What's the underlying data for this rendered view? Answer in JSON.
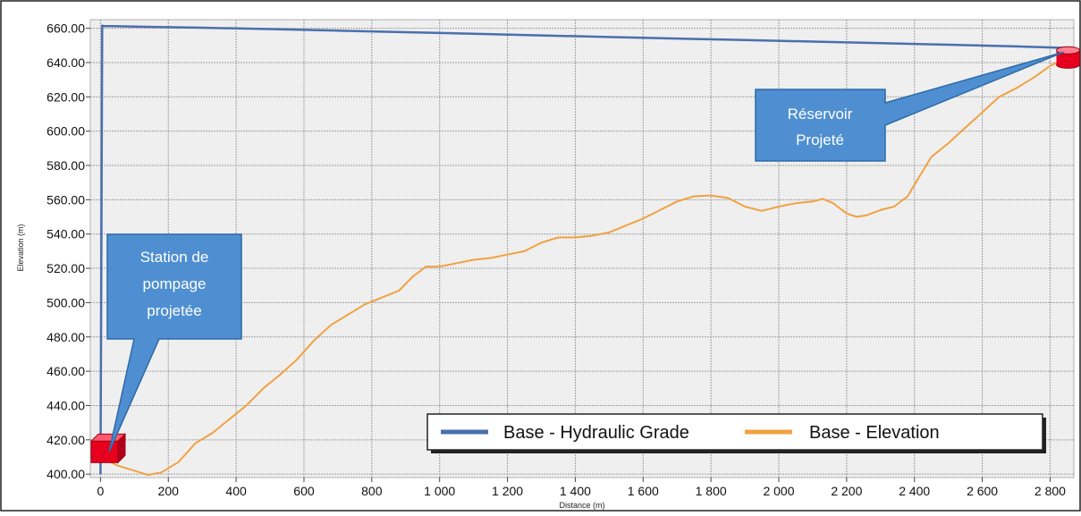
{
  "chart_data": {
    "type": "line",
    "xlabel": "Distance (m)",
    "ylabel": "Elevation (m)",
    "xlim": [
      -30,
      2870
    ],
    "ylim": [
      398,
      665
    ],
    "y_ticks": [
      400,
      420,
      440,
      460,
      480,
      500,
      520,
      540,
      560,
      580,
      600,
      620,
      640,
      660
    ],
    "y_tick_labels": [
      "400.00",
      "420.00",
      "440.00",
      "460.00",
      "480.00",
      "500.00",
      "520.00",
      "540.00",
      "560.00",
      "580.00",
      "600.00",
      "620.00",
      "640.00",
      "660.00"
    ],
    "x_ticks": [
      0,
      200,
      400,
      600,
      800,
      1000,
      1200,
      1400,
      1600,
      1800,
      2000,
      2200,
      2400,
      2600,
      2800
    ],
    "x_tick_labels": [
      "0",
      "200",
      "400",
      "600",
      "800",
      "1 000",
      "1 200",
      "1 400",
      "1 600",
      "1 800",
      "2 000",
      "2 200",
      "2 400",
      "2 600",
      "2 800"
    ],
    "grid": true,
    "legend_position": "bottom-right",
    "series": [
      {
        "name": "Base - Hydraulic Grade",
        "color": "#4a6fae",
        "x": [
          0,
          5,
          10,
          100,
          300,
          500,
          700,
          900,
          1100,
          1300,
          1500,
          1700,
          1900,
          2100,
          2300,
          2500,
          2700,
          2850
        ],
        "y": [
          400,
          661.5,
          661.3,
          661,
          660.3,
          659.5,
          658.6,
          657.7,
          656.8,
          655.8,
          654.9,
          654,
          653.1,
          652.2,
          651.3,
          650.4,
          649.4,
          648.5
        ]
      },
      {
        "name": "Base - Elevation",
        "color": "#f0a243",
        "x": [
          0,
          50,
          100,
          140,
          180,
          230,
          280,
          330,
          380,
          430,
          480,
          530,
          580,
          630,
          680,
          730,
          780,
          830,
          880,
          920,
          960,
          1000,
          1050,
          1100,
          1150,
          1200,
          1250,
          1300,
          1350,
          1400,
          1450,
          1500,
          1550,
          1600,
          1650,
          1700,
          1750,
          1800,
          1850,
          1900,
          1950,
          2000,
          2050,
          2100,
          2130,
          2160,
          2200,
          2230,
          2260,
          2300,
          2340,
          2380,
          2410,
          2450,
          2500,
          2550,
          2600,
          2650,
          2700,
          2750,
          2800,
          2840
        ],
        "y": [
          410,
          405,
          402,
          399.5,
          401,
          407,
          418,
          424,
          432,
          440,
          450,
          458,
          467,
          478,
          487,
          493,
          499,
          503,
          507,
          515,
          521,
          521,
          523,
          525,
          526,
          528,
          530,
          535,
          538,
          538,
          539,
          541,
          545,
          549,
          554,
          559,
          562,
          562.5,
          561,
          556,
          553.5,
          556,
          558,
          559,
          560.5,
          558,
          552,
          550,
          551,
          554,
          556,
          562,
          572,
          585,
          593,
          602,
          611,
          620,
          625,
          631,
          638,
          642
        ]
      }
    ],
    "annotations": [
      {
        "name": "station",
        "lines": [
          "Station de",
          "pompage",
          "projetée"
        ],
        "x": 20,
        "y": 414
      },
      {
        "name": "reservoir",
        "lines": [
          "Réservoir",
          "Projeté"
        ],
        "x": 2845,
        "y": 644
      }
    ]
  },
  "colors": {
    "callout_fill": "#4f8fd1",
    "callout_border": "#2d6aa8",
    "node_red": "#e6001e",
    "grid": "#a0a0a0",
    "plot_bg": "#efefef"
  }
}
